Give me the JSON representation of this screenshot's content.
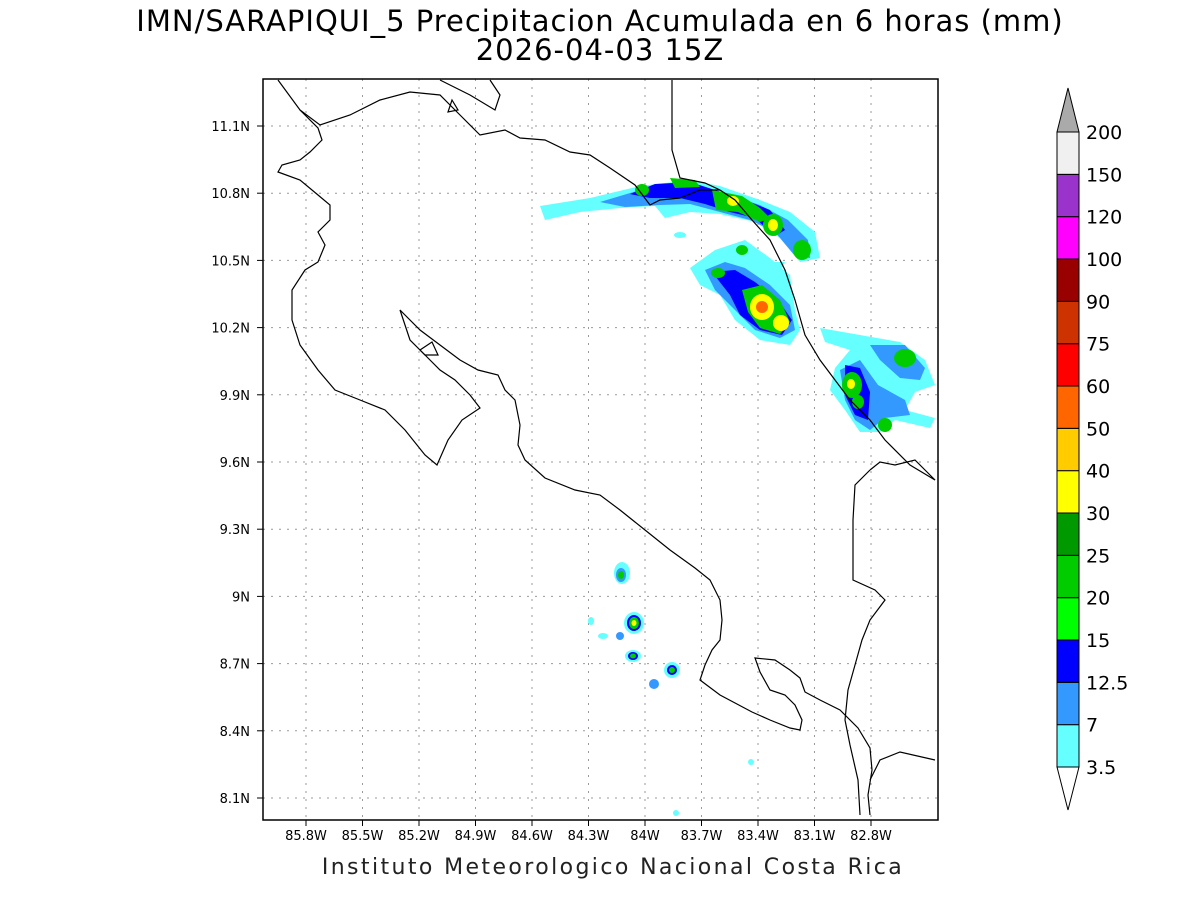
{
  "header": {
    "title_line1": "IMN/SARAPIQUI_5 Precipitacion Acumulada en 6 horas (mm)",
    "title_line2": "2026-04-03 15Z"
  },
  "footer": {
    "credit": "Instituto Meteorologico Nacional Costa Rica"
  },
  "map": {
    "lon_range": [
      -86.0,
      -83.0
    ],
    "lat_range": [
      8.0,
      11.3
    ],
    "grid": "dotted",
    "lon_ticks": [
      "85.8W",
      "85.5W",
      "85.2W",
      "84.9W",
      "84.6W",
      "84.3W",
      "84W",
      "83.7W",
      "83.4W",
      "83.1W",
      "82.8W"
    ],
    "lat_ticks": [
      "8.1N",
      "8.4N",
      "8.7N",
      "9N",
      "9.3N",
      "9.6N",
      "9.9N",
      "10.2N",
      "10.5N",
      "10.8N",
      "11.1N"
    ]
  },
  "colorbar": {
    "levels": [
      "3.5",
      "7",
      "12.5",
      "15",
      "20",
      "25",
      "30",
      "40",
      "50",
      "60",
      "75",
      "90",
      "100",
      "120",
      "150",
      "200"
    ],
    "colors": [
      "#66ffff",
      "#3399ff",
      "#0000ff",
      "#00ff00",
      "#00cc00",
      "#009900",
      "#ffff00",
      "#ffcc00",
      "#ff6600",
      "#ff0000",
      "#cc3300",
      "#990000",
      "#ff00ff",
      "#9933cc",
      "#f0f0f0",
      "#aaaaaa"
    ]
  }
}
